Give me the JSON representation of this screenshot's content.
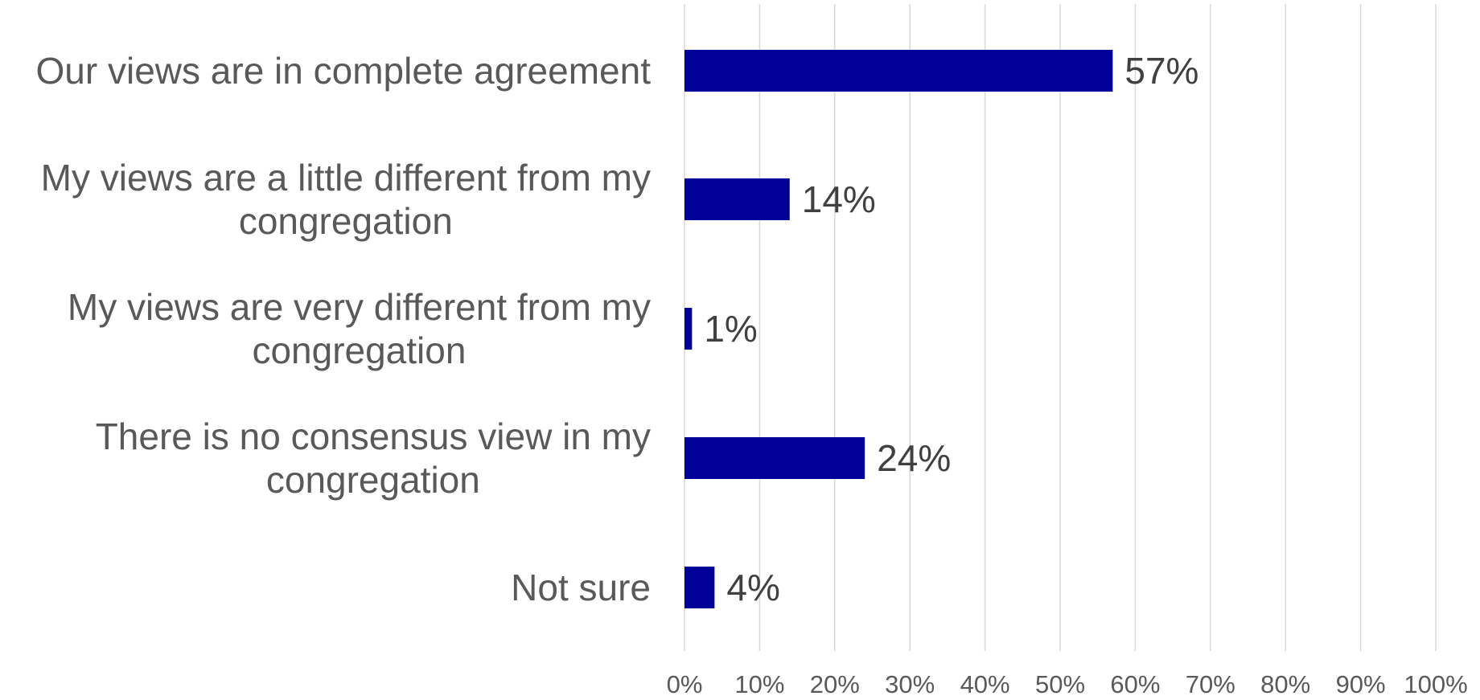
{
  "chart_data": {
    "type": "bar",
    "orientation": "horizontal",
    "categories": [
      "Our views are in complete agreement",
      "My views are a little different from my congregation",
      "My views are very different from my congregation",
      "There is no consensus view in my congregation",
      "Not sure"
    ],
    "category_lines": [
      [
        "Our views are in complete agreement"
      ],
      [
        "My views are a little different from my",
        "congregation"
      ],
      [
        "My views are very different from my",
        "congregation"
      ],
      [
        "There is no consensus view in my",
        "congregation"
      ],
      [
        "Not sure"
      ]
    ],
    "values": [
      57,
      14,
      1,
      24,
      4
    ],
    "data_labels": [
      "57%",
      "14%",
      "1%",
      "24%",
      "4%"
    ],
    "x_ticks": [
      "0%",
      "10%",
      "20%",
      "30%",
      "40%",
      "50%",
      "60%",
      "70%",
      "80%",
      "90%",
      "100%"
    ],
    "xlim": [
      0,
      100
    ],
    "grid": true,
    "legend": "none",
    "bar_color": "#000099",
    "grid_color": "#d9d9d9",
    "text_color": "#595959",
    "label_color": "#404040",
    "title": "",
    "xlabel": "",
    "ylabel": ""
  }
}
